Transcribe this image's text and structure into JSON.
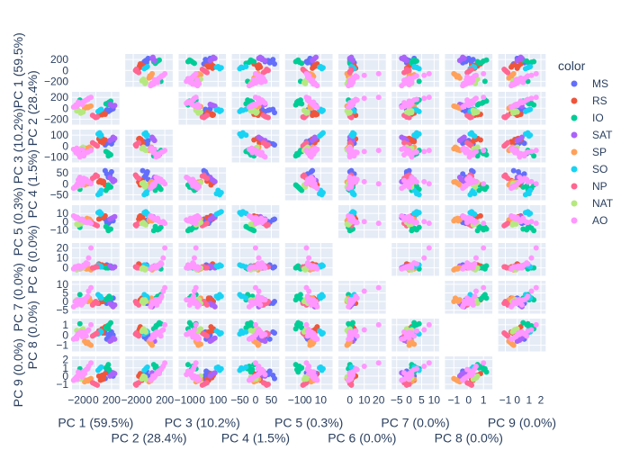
{
  "chart_data": {
    "type": "scatter",
    "subtype": "scatter-matrix",
    "title": "",
    "diagonal_visible": false,
    "dimensions": [
      {
        "label": "PC 1 (59.5%)",
        "range": [
          -300,
          300
        ],
        "ticks": [
          -200,
          0,
          200
        ]
      },
      {
        "label": "PC 2 (28.4%)",
        "range": [
          -300,
          300
        ],
        "ticks": [
          -200,
          0,
          200
        ]
      },
      {
        "label": "PC 3 (10.2%)",
        "range": [
          -150,
          150
        ],
        "ticks": [
          -100,
          0,
          100
        ]
      },
      {
        "label": "PC 4 (1.5%)",
        "range": [
          -75,
          75
        ],
        "ticks": [
          -50,
          0,
          50
        ]
      },
      {
        "label": "PC 5 (0.3%)",
        "range": [
          -20,
          20
        ],
        "ticks": [
          -10,
          0,
          10
        ]
      },
      {
        "label": "PC 6 (0.0%)",
        "range": [
          -8,
          25
        ],
        "ticks": [
          0,
          10,
          20
        ]
      },
      {
        "label": "PC 7 (0.0%)",
        "range": [
          -7,
          12
        ],
        "ticks": [
          -5,
          0,
          5,
          10
        ]
      },
      {
        "label": "PC 8 (0.0%)",
        "range": [
          -1.6,
          1.6
        ],
        "ticks": [
          -1,
          0,
          1
        ]
      },
      {
        "label": "PC 9 (0.0%)",
        "range": [
          -1.6,
          2.4
        ],
        "ticks": [
          -1,
          0,
          1,
          2
        ]
      }
    ],
    "legend": {
      "title": "color",
      "position": "right",
      "entries": [
        {
          "name": "MS",
          "color": "#636efa"
        },
        {
          "name": "RS",
          "color": "#EF553B"
        },
        {
          "name": "IO",
          "color": "#00cc96"
        },
        {
          "name": "SAT",
          "color": "#ab63fa"
        },
        {
          "name": "SP",
          "color": "#FFA15A"
        },
        {
          "name": "SO",
          "color": "#19d3f3"
        },
        {
          "name": "NP",
          "color": "#FF6692"
        },
        {
          "name": "NAT",
          "color": "#B6E880"
        },
        {
          "name": "AO",
          "color": "#FF97FF"
        }
      ]
    },
    "series": [
      {
        "name": "MS",
        "points": [
          [
            180,
            -40,
            30,
            40,
            0,
            1,
            0,
            0.1,
            0.2
          ],
          [
            200,
            -20,
            20,
            55,
            2,
            0,
            -1,
            0.3,
            0.1
          ],
          [
            160,
            -60,
            40,
            30,
            -2,
            2,
            1,
            -0.2,
            0.4
          ],
          [
            120,
            -80,
            10,
            60,
            3,
            1,
            0,
            0.2,
            -0.3
          ],
          [
            220,
            -10,
            50,
            20,
            1,
            0,
            2,
            0.0,
            0.0
          ],
          [
            140,
            -30,
            25,
            45,
            -1,
            3,
            -1,
            -0.4,
            0.6
          ]
        ]
      },
      {
        "name": "RS",
        "points": [
          [
            100,
            -100,
            60,
            10,
            5,
            2,
            1,
            0.5,
            -0.2
          ],
          [
            80,
            -120,
            70,
            5,
            6,
            3,
            0,
            0.6,
            0.1
          ],
          [
            60,
            -90,
            40,
            15,
            4,
            1,
            2,
            0.3,
            -0.5
          ],
          [
            120,
            -110,
            55,
            -5,
            7,
            2,
            1,
            0.8,
            0.3
          ],
          [
            40,
            -130,
            65,
            8,
            3,
            4,
            -1,
            0.4,
            0.0
          ],
          [
            90,
            -80,
            30,
            12,
            5,
            1,
            0,
            0.2,
            -0.4
          ]
        ]
      },
      {
        "name": "IO",
        "points": [
          [
            150,
            90,
            -60,
            -20,
            -8,
            0,
            2,
            0.9,
            1.2
          ],
          [
            170,
            110,
            -70,
            -10,
            -10,
            1,
            3,
            1.0,
            0.8
          ],
          [
            130,
            80,
            -50,
            -30,
            -6,
            0,
            1,
            0.7,
            1.0
          ],
          [
            190,
            130,
            -80,
            -15,
            -9,
            2,
            2,
            1.2,
            0.5
          ],
          [
            -200,
            150,
            -40,
            -25,
            -7,
            -1,
            4,
            1.1,
            0.9
          ],
          [
            160,
            60,
            -90,
            -5,
            -11,
            0,
            1,
            0.6,
            1.4
          ]
        ]
      },
      {
        "name": "SAT",
        "points": [
          [
            200,
            60,
            60,
            20,
            4,
            1,
            -2,
            -0.5,
            0.2
          ],
          [
            220,
            40,
            80,
            10,
            5,
            0,
            -3,
            -0.3,
            0.4
          ],
          [
            180,
            70,
            50,
            30,
            3,
            2,
            -1,
            -0.6,
            0.0
          ],
          [
            240,
            50,
            70,
            15,
            6,
            1,
            -2,
            -0.4,
            0.3
          ]
        ]
      },
      {
        "name": "SP",
        "points": [
          [
            -120,
            20,
            -20,
            5,
            2,
            -1,
            1,
            -0.8,
            -0.5
          ],
          [
            -100,
            10,
            -30,
            0,
            1,
            0,
            0,
            -0.7,
            -0.6
          ],
          [
            -80,
            30,
            -10,
            10,
            3,
            -1,
            2,
            -0.9,
            -0.4
          ],
          [
            -140,
            0,
            -40,
            -5,
            2,
            0,
            1,
            -0.6,
            -0.7
          ],
          [
            -60,
            40,
            -25,
            8,
            1,
            -2,
            0,
            -1.0,
            -0.3
          ],
          [
            -110,
            25,
            -35,
            3,
            4,
            -1,
            1,
            -0.75,
            -0.55
          ]
        ]
      },
      {
        "name": "SO",
        "points": [
          [
            50,
            -40,
            120,
            -40,
            12,
            2,
            3,
            0.2,
            0.9
          ],
          [
            70,
            -20,
            100,
            -30,
            10,
            1,
            2,
            0.3,
            1.1
          ],
          [
            30,
            -60,
            110,
            -50,
            11,
            3,
            4,
            0.1,
            0.7
          ],
          [
            60,
            -30,
            90,
            -45,
            9,
            2,
            3,
            0.4,
            1.0
          ]
        ]
      },
      {
        "name": "NP",
        "points": [
          [
            -20,
            -150,
            20,
            30,
            -3,
            0,
            -1,
            0.0,
            -0.9
          ],
          [
            0,
            -170,
            10,
            40,
            -4,
            1,
            0,
            0.1,
            -1.0
          ],
          [
            -40,
            -130,
            30,
            25,
            -2,
            0,
            -2,
            -0.1,
            -0.8
          ],
          [
            20,
            -160,
            0,
            35,
            -5,
            1,
            -1,
            0.2,
            -1.1
          ]
        ]
      },
      {
        "name": "NAT",
        "points": [
          [
            -200,
            -60,
            -30,
            -10,
            -3,
            -1,
            0,
            0.4,
            -0.3
          ],
          [
            -180,
            -80,
            -20,
            0,
            -2,
            0,
            1,
            0.5,
            -0.2
          ],
          [
            -220,
            -40,
            -40,
            -5,
            -4,
            -1,
            0,
            0.3,
            -0.4
          ],
          [
            -160,
            -70,
            -10,
            5,
            -1,
            0,
            -1,
            0.6,
            0.0
          ],
          [
            -240,
            -50,
            -35,
            -15,
            -3,
            -2,
            1,
            0.45,
            -0.1
          ],
          [
            -190,
            -90,
            -25,
            2,
            -2,
            -1,
            0,
            0.35,
            -0.35
          ]
        ]
      },
      {
        "name": "AO",
        "points": [
          [
            -250,
            60,
            -60,
            -10,
            4,
            1,
            0,
            -0.2,
            -0.2
          ],
          [
            -230,
            50,
            -50,
            0,
            5,
            0,
            -1,
            0.0,
            0.0
          ],
          [
            -210,
            80,
            -70,
            5,
            3,
            2,
            1,
            0.2,
            0.1
          ],
          [
            -260,
            40,
            -40,
            -15,
            6,
            1,
            0,
            -0.3,
            -0.3
          ],
          [
            -180,
            100,
            -80,
            15,
            2,
            0,
            -2,
            0.3,
            0.4
          ],
          [
            -150,
            120,
            -90,
            25,
            1,
            3,
            1,
            0.1,
            0.6
          ],
          [
            -120,
            150,
            -60,
            20,
            -1,
            5,
            2,
            -0.1,
            0.8
          ],
          [
            -90,
            180,
            -50,
            10,
            0,
            10,
            6,
            0.5,
            1.2
          ],
          [
            -60,
            200,
            -40,
            0,
            -2,
            20,
            8,
            1.0,
            1.6
          ],
          [
            -280,
            20,
            -30,
            -20,
            7,
            -1,
            -3,
            -0.4,
            -0.5
          ],
          [
            -200,
            90,
            -100,
            30,
            2,
            0,
            1,
            0.05,
            0.2
          ],
          [
            -170,
            70,
            -30,
            -5,
            3,
            1,
            -1,
            -0.15,
            -0.1
          ],
          [
            -140,
            130,
            -70,
            12,
            0,
            2,
            0,
            0.25,
            0.3
          ],
          [
            -100,
            160,
            -55,
            8,
            -1,
            4,
            3,
            0.4,
            0.9
          ],
          [
            -240,
            30,
            -20,
            -12,
            5,
            0,
            -2,
            -0.35,
            -0.4
          ],
          [
            -220,
            110,
            -75,
            18,
            4,
            2,
            1,
            0.15,
            0.5
          ]
        ]
      }
    ]
  }
}
